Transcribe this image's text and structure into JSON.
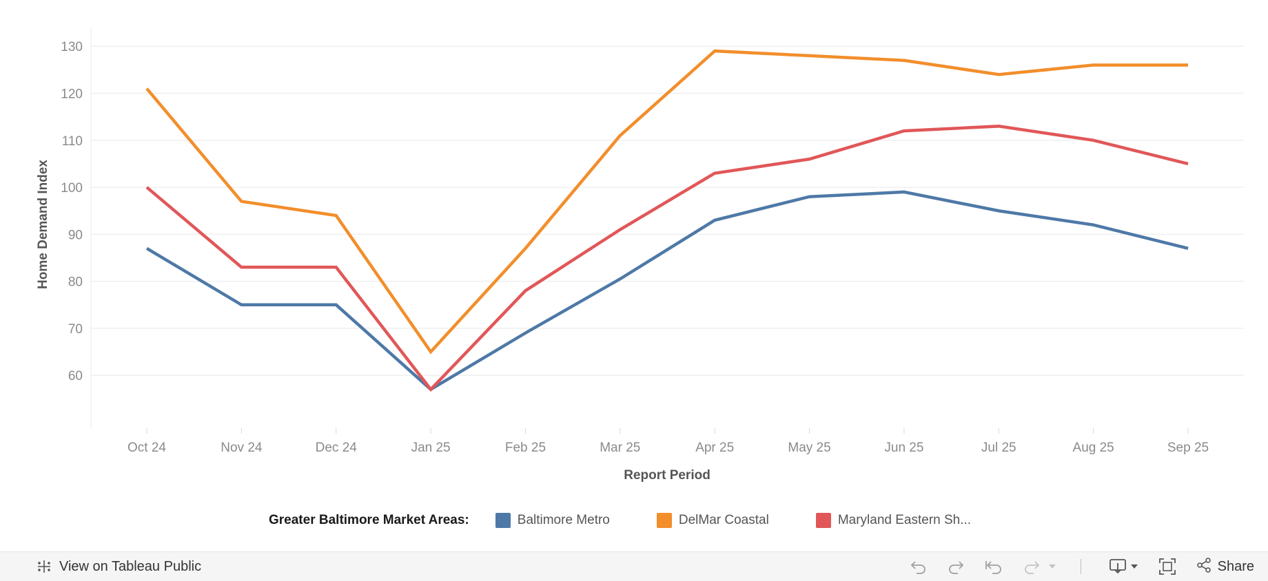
{
  "chart_data": {
    "type": "line",
    "xlabel": "Report Period",
    "ylabel": "Home Demand Index",
    "categories": [
      "Oct 24",
      "Nov 24",
      "Dec 24",
      "Jan 25",
      "Feb 25",
      "Mar 25",
      "Apr 25",
      "May 25",
      "Jun 25",
      "Jul 25",
      "Aug 25",
      "Sep 25"
    ],
    "yticks": [
      60,
      70,
      80,
      90,
      100,
      110,
      120,
      130
    ],
    "ylim": [
      53,
      131.5
    ],
    "grid": true,
    "legend_title": "Greater Baltimore Market Areas:",
    "series": [
      {
        "name": "Baltimore Metro",
        "color": "#4e79a7",
        "values": [
          87,
          75,
          75,
          57,
          69,
          80.5,
          93,
          98,
          99,
          95,
          92,
          87
        ]
      },
      {
        "name": "DelMar Coastal",
        "color": "#f28e2b",
        "values": [
          121,
          97,
          94,
          65,
          87,
          111,
          129,
          128,
          127,
          124,
          126,
          126
        ]
      },
      {
        "name": "Maryland Eastern Sh...",
        "color": "#e15759",
        "values": [
          100,
          83,
          83,
          57,
          78,
          91,
          103,
          106,
          112,
          113,
          110,
          105
        ]
      }
    ]
  },
  "toolbar": {
    "view_label": "View on Tableau Public",
    "share_label": "Share",
    "icons": [
      "undo-icon",
      "redo-icon",
      "revert-icon",
      "refresh-icon",
      "dropdown-icon",
      "download-icon",
      "fullscreen-icon",
      "share-icon"
    ]
  }
}
